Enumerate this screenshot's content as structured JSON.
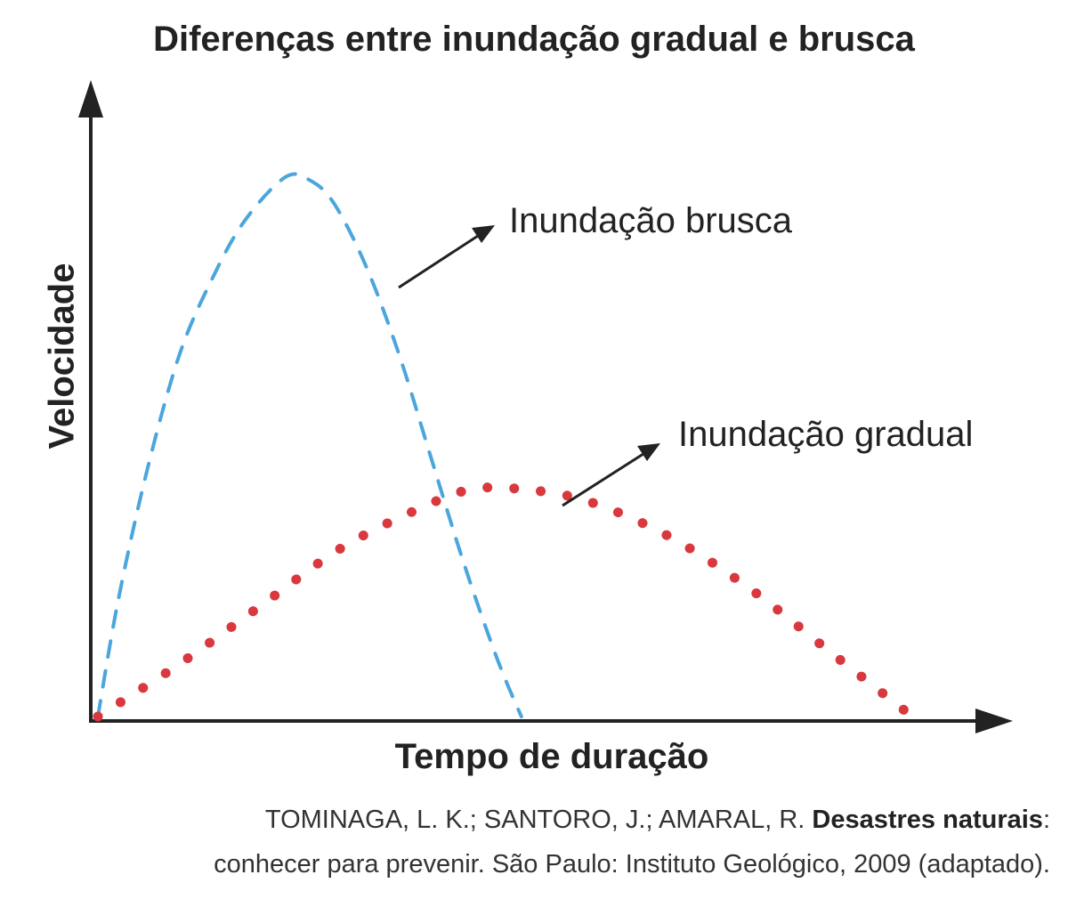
{
  "title": "Diferenças entre inundação gradual e brusca",
  "chart_data": {
    "type": "line",
    "title": "Diferenças entre inundação gradual e brusca",
    "xlabel": "Tempo de duração",
    "ylabel": "Velocidade",
    "xlim": [
      0,
      10
    ],
    "ylim": [
      0,
      10
    ],
    "grid": false,
    "series": [
      {
        "name": "Inundação brusca",
        "style": "dashed",
        "color": "#4aa6dd",
        "x": [
          0,
          0.25,
          0.6,
          1.0,
          1.4,
          1.8,
          2.3,
          2.6,
          2.9,
          3.3,
          3.7,
          4.1,
          4.5,
          4.9,
          5.2
        ],
        "y": [
          0,
          2.0,
          4.2,
          6.2,
          7.5,
          8.5,
          9.25,
          9.2,
          8.8,
          7.7,
          6.2,
          4.4,
          2.6,
          1.0,
          0
        ]
      },
      {
        "name": "Inundação gradual",
        "style": "dotted",
        "color": "#d9383e",
        "x": [
          0,
          1,
          2,
          3,
          4,
          4.6,
          5.2,
          6,
          7,
          8,
          9,
          10
        ],
        "y": [
          0,
          0.9,
          1.9,
          2.9,
          3.6,
          3.9,
          3.9,
          3.7,
          3.1,
          2.2,
          1.1,
          0
        ]
      }
    ],
    "annotations": [
      "Inundação brusca",
      "Inundação gradual"
    ]
  },
  "source": {
    "prefix": "TOMINAGA, L. K.; SANTORO, J.; AMARAL, R. ",
    "bold": "Desastres naturais",
    "suffix": ":",
    "line2": "conhecer para prevenir. São Paulo: Instituto Geológico, 2009 (adaptado)."
  }
}
